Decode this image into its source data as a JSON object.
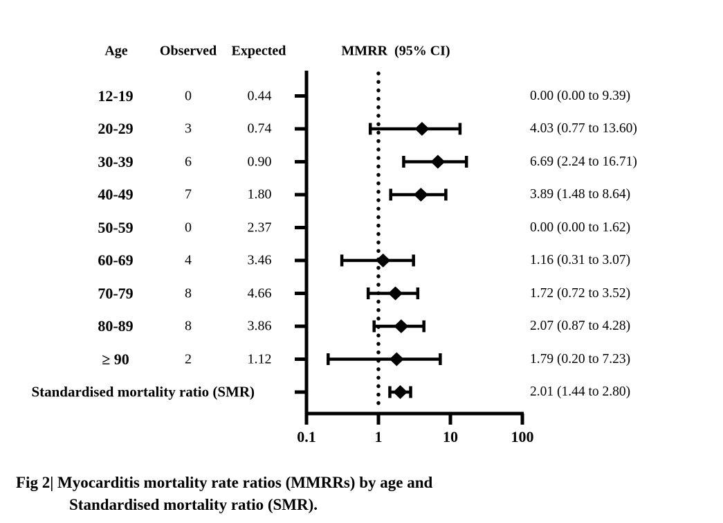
{
  "colors": {
    "ink": "#000000",
    "background": "#ffffff"
  },
  "chart_data": {
    "type": "forest",
    "columns": [
      "Age",
      "Observed",
      "Expected",
      "MMRR  (95% CI)"
    ],
    "x_axis": {
      "scale": "log10",
      "xlim": [
        0.1,
        100
      ],
      "ticks": [
        0.1,
        1,
        10,
        100
      ],
      "tick_labels": [
        "0.1",
        "1",
        "10",
        "100"
      ],
      "reference_line": 1,
      "reference_line_style": "dotted"
    },
    "rows": [
      {
        "age": "12-19",
        "observed": "0",
        "expected": "0.44",
        "mmrr": 0.0,
        "ci_low": 0.0,
        "ci_high": 9.39,
        "ci_label": "0.00 (0.00 to 9.39)",
        "plotted": false,
        "summary": false
      },
      {
        "age": "20-29",
        "observed": "3",
        "expected": "0.74",
        "mmrr": 4.03,
        "ci_low": 0.77,
        "ci_high": 13.6,
        "ci_label": "4.03 (0.77 to 13.60)",
        "plotted": true,
        "summary": false
      },
      {
        "age": "30-39",
        "observed": "6",
        "expected": "0.90",
        "mmrr": 6.69,
        "ci_low": 2.24,
        "ci_high": 16.71,
        "ci_label": "6.69 (2.24 to 16.71)",
        "plotted": true,
        "summary": false
      },
      {
        "age": "40-49",
        "observed": "7",
        "expected": "1.80",
        "mmrr": 3.89,
        "ci_low": 1.48,
        "ci_high": 8.64,
        "ci_label": "3.89 (1.48 to 8.64)",
        "plotted": true,
        "summary": false
      },
      {
        "age": "50-59",
        "observed": "0",
        "expected": "2.37",
        "mmrr": 0.0,
        "ci_low": 0.0,
        "ci_high": 1.62,
        "ci_label": "0.00 (0.00 to 1.62)",
        "plotted": false,
        "summary": false
      },
      {
        "age": "60-69",
        "observed": "4",
        "expected": "3.46",
        "mmrr": 1.16,
        "ci_low": 0.31,
        "ci_high": 3.07,
        "ci_label": "1.16 (0.31 to 3.07)",
        "plotted": true,
        "summary": false
      },
      {
        "age": "70-79",
        "observed": "8",
        "expected": "4.66",
        "mmrr": 1.72,
        "ci_low": 0.72,
        "ci_high": 3.52,
        "ci_label": "1.72 (0.72 to 3.52)",
        "plotted": true,
        "summary": false
      },
      {
        "age": "80-89",
        "observed": "8",
        "expected": "3.86",
        "mmrr": 2.07,
        "ci_low": 0.87,
        "ci_high": 4.28,
        "ci_label": "2.07 (0.87 to 4.28)",
        "plotted": true,
        "summary": false
      },
      {
        "age": "≥ 90",
        "observed": "2",
        "expected": "1.12",
        "mmrr": 1.79,
        "ci_low": 0.2,
        "ci_high": 7.23,
        "ci_label": "1.79 (0.20 to 7.23)",
        "plotted": true,
        "summary": false
      },
      {
        "age": "Standardised mortality ratio (SMR)",
        "observed": "",
        "expected": "",
        "mmrr": 2.01,
        "ci_low": 1.44,
        "ci_high": 2.8,
        "ci_label": "2.01 (1.44 to 2.80)",
        "plotted": true,
        "summary": true
      }
    ],
    "caption": [
      "Fig 2| Myocarditis mortality rate ratios (MMRRs) by age and",
      "Standardised mortality ratio (SMR)."
    ]
  }
}
